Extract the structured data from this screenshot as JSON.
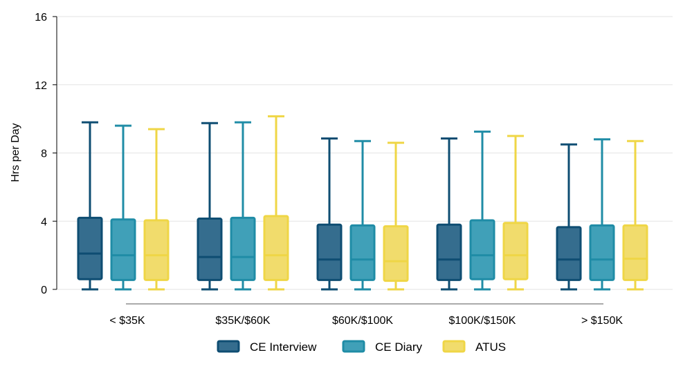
{
  "chart_data": {
    "type": "box",
    "ylabel": "Hrs per Day",
    "xlabel": "",
    "ylim": [
      0,
      16
    ],
    "yticks": [
      0,
      4,
      8,
      12,
      16
    ],
    "grid": "horizontal",
    "legend_position": "bottom",
    "categories": [
      "< $35K",
      "$35K/$60K",
      "$60K/$100K",
      "$100K/$150K",
      "> $150K"
    ],
    "series": [
      {
        "name": "CE Interview",
        "color": "#0e4d72",
        "fill": "#356d8e",
        "boxes": [
          {
            "min": 0,
            "q1": 0.6,
            "median": 2.1,
            "q3": 4.2,
            "max": 9.8
          },
          {
            "min": 0,
            "q1": 0.55,
            "median": 1.9,
            "q3": 4.15,
            "max": 9.75
          },
          {
            "min": 0,
            "q1": 0.55,
            "median": 1.75,
            "q3": 3.8,
            "max": 8.85
          },
          {
            "min": 0,
            "q1": 0.55,
            "median": 1.75,
            "q3": 3.8,
            "max": 8.85
          },
          {
            "min": 0,
            "q1": 0.55,
            "median": 1.75,
            "q3": 3.65,
            "max": 8.5
          }
        ]
      },
      {
        "name": "CE Diary",
        "color": "#1f8ca6",
        "fill": "#40a0b8",
        "boxes": [
          {
            "min": 0,
            "q1": 0.55,
            "median": 2.0,
            "q3": 4.1,
            "max": 9.6
          },
          {
            "min": 0,
            "q1": 0.55,
            "median": 1.9,
            "q3": 4.2,
            "max": 9.8
          },
          {
            "min": 0,
            "q1": 0.55,
            "median": 1.75,
            "q3": 3.75,
            "max": 8.7
          },
          {
            "min": 0,
            "q1": 0.6,
            "median": 2.0,
            "q3": 4.05,
            "max": 9.25
          },
          {
            "min": 0,
            "q1": 0.55,
            "median": 1.75,
            "q3": 3.75,
            "max": 8.8
          }
        ]
      },
      {
        "name": "ATUS",
        "color": "#efd646",
        "fill": "#f1dc6c",
        "boxes": [
          {
            "min": 0,
            "q1": 0.55,
            "median": 2.0,
            "q3": 4.05,
            "max": 9.4
          },
          {
            "min": 0,
            "q1": 0.55,
            "median": 2.0,
            "q3": 4.3,
            "max": 10.15
          },
          {
            "min": 0,
            "q1": 0.5,
            "median": 1.65,
            "q3": 3.7,
            "max": 8.6
          },
          {
            "min": 0,
            "q1": 0.6,
            "median": 2.0,
            "q3": 3.9,
            "max": 9.0
          },
          {
            "min": 0,
            "q1": 0.55,
            "median": 1.8,
            "q3": 3.75,
            "max": 8.7
          }
        ]
      }
    ]
  }
}
